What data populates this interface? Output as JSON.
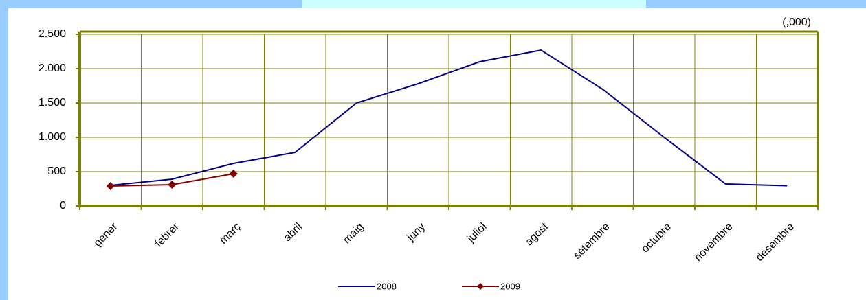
{
  "chart_data": {
    "type": "line",
    "unit_label": "(,000)",
    "categories": [
      "gener",
      "febrer",
      "març",
      "abril",
      "maig",
      "juny",
      "juliol",
      "agost",
      "setembre",
      "octubre",
      "novembre",
      "desembre"
    ],
    "series": [
      {
        "name": "2008",
        "color": "#000080",
        "marker": "none",
        "values": [
          300,
          390,
          620,
          780,
          1500,
          1780,
          2100,
          2270,
          1700,
          1000,
          320,
          295
        ]
      },
      {
        "name": "2009",
        "color": "#800000",
        "marker": "diamond",
        "values": [
          290,
          310,
          470,
          null,
          null,
          null,
          null,
          null,
          null,
          null,
          null,
          null
        ]
      }
    ],
    "ylim": [
      0,
      2500
    ],
    "yticks": [
      0,
      500,
      {
        "value": 1000,
        "label": "1.000"
      },
      {
        "value": 1500,
        "label": "1.500"
      },
      {
        "value": 2000,
        "label": "2.000"
      },
      {
        "value": 2500,
        "label": "2.500"
      }
    ],
    "grid": true,
    "legend": "bottom"
  }
}
